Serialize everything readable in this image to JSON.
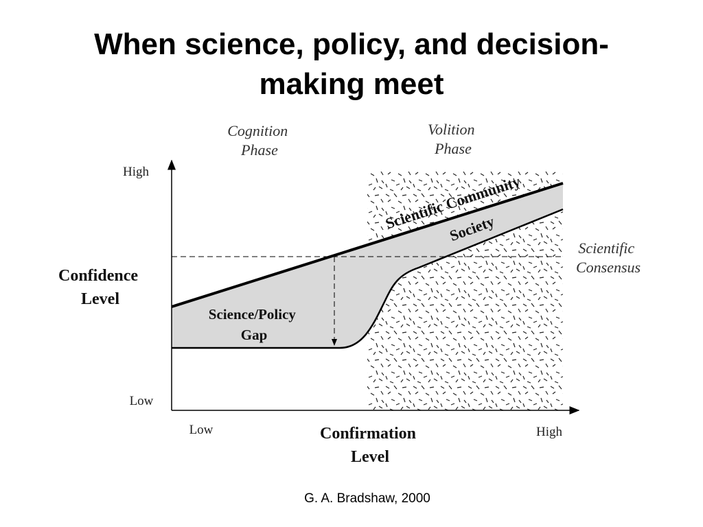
{
  "title_lines": [
    "When science, policy, and decision-",
    "making meet"
  ],
  "diagram": {
    "phases": [
      {
        "lines": [
          "Cognition",
          "Phase"
        ]
      },
      {
        "lines": [
          "Volition",
          "Phase"
        ]
      }
    ],
    "y_axis": {
      "high": "High",
      "low": "Low",
      "label_lines": [
        "Confidence",
        "Level"
      ]
    },
    "x_axis": {
      "low": "Low",
      "high": "High",
      "label_lines": [
        "Confirmation",
        "Level"
      ]
    },
    "curves": {
      "scientific_community": "Scientific Community",
      "society": "Society"
    },
    "gap_label_lines": [
      "Science/Policy",
      "Gap"
    ],
    "consensus_lines": [
      "Scientific",
      "Consensus"
    ]
  },
  "credit": "G. A. Bradshaw, 2000"
}
